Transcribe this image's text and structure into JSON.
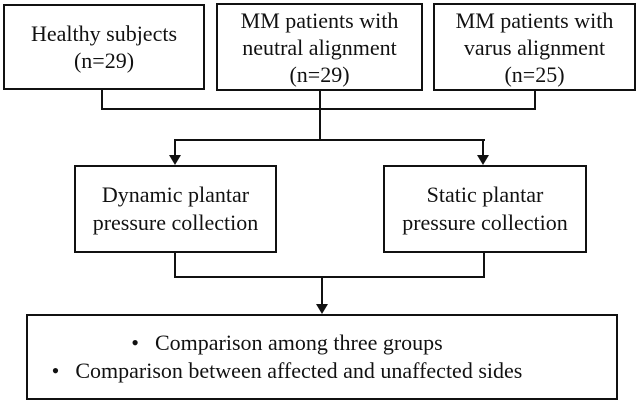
{
  "diagram": {
    "top_boxes": {
      "healthy": {
        "line1": "Healthy subjects",
        "line2": "(n=29)"
      },
      "neutral": {
        "line1": "MM patients with",
        "line2": "neutral alignment",
        "line3": "(n=29)"
      },
      "varus": {
        "line1": "MM patients with",
        "line2": "varus alignment",
        "line3": "(n=25)"
      }
    },
    "middle_boxes": {
      "dynamic": {
        "line1": "Dynamic plantar",
        "line2": "pressure collection"
      },
      "static": {
        "line1": "Static plantar",
        "line2": "pressure collection"
      }
    },
    "bottom_box": {
      "bullet": "•",
      "item1": "Comparison among three groups",
      "item2": "Comparison between affected and unaffected sides"
    },
    "colors": {
      "background": "#ffffff",
      "line": "#111111",
      "text": "#111111"
    }
  }
}
